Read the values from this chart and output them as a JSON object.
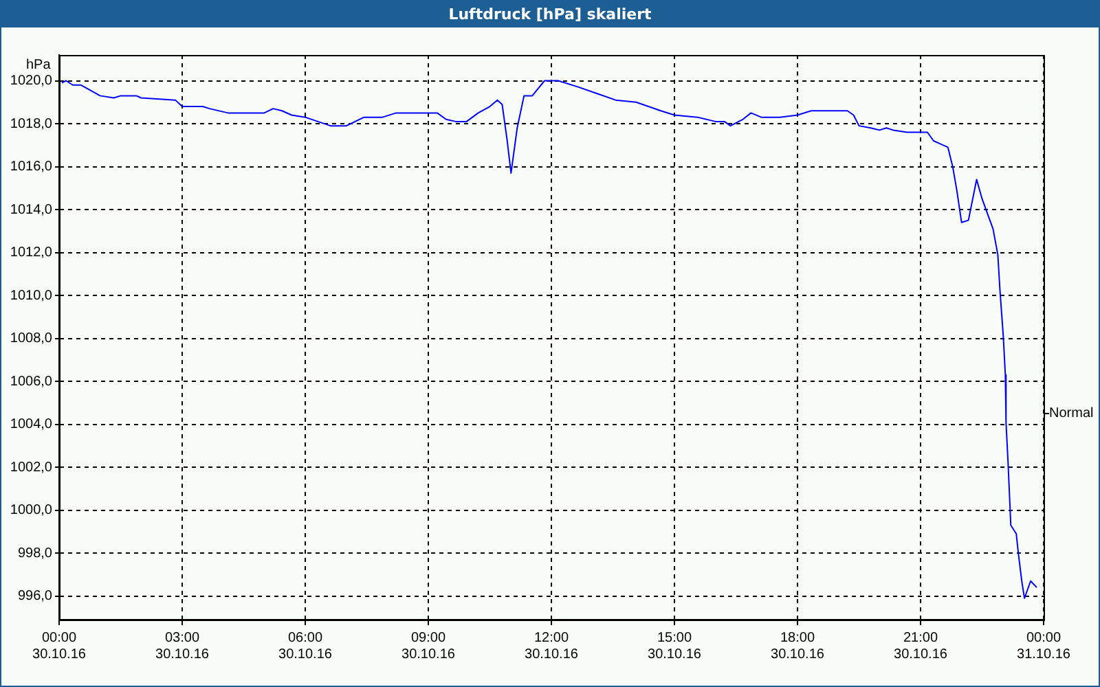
{
  "chart_data": {
    "type": "line",
    "title": "Luftdruck [hPa] skaliert",
    "ylabel": "hPa",
    "x": [
      "--10-30T00:04",
      "--10-30T00:10",
      "--10-30T00:20",
      "--10-30T00:32",
      "--10-30T01:00",
      "--10-30T01:20",
      "--10-30T01:30",
      "--10-30T01:53",
      "--10-30T02:00",
      "--10-30T02:50",
      "--10-30T03:00",
      "--10-30T03:30",
      "--10-30T03:40",
      "--10-30T04:07",
      "--10-30T05:00",
      "--10-30T05:13",
      "--10-30T05:26",
      "--10-30T05:40",
      "--10-30T06:00",
      "--10-30T06:37",
      "--10-30T07:00",
      "--10-30T07:26",
      "--10-30T07:53",
      "--10-30T08:13",
      "--10-30T09:13",
      "--10-30T09:26",
      "--10-30T09:40",
      "--10-30T09:56",
      "--10-30T10:13",
      "--10-30T10:30",
      "--10-30T10:41",
      "--10-30T10:48",
      "--10-30T10:55",
      "--10-30T11:01",
      "--10-30T11:10",
      "--10-30T11:20",
      "--10-30T11:32",
      "--10-30T11:50",
      "--10-30T12:10",
      "--10-30T12:40",
      "--10-30T13:07",
      "--10-30T13:34",
      "--10-30T14:04",
      "--10-30T14:40",
      "--10-30T15:00",
      "--10-30T15:34",
      "--10-30T16:00",
      "--10-30T16:13",
      "--10-30T16:22",
      "--10-30T16:34",
      "--10-30T16:40",
      "--10-30T16:52",
      "--10-30T17:07",
      "--10-30T17:34",
      "--10-30T18:00",
      "--10-30T18:20",
      "--10-30T18:40",
      "--10-30T19:13",
      "--10-30T19:22",
      "--10-30T19:30",
      "--10-30T19:47",
      "--10-30T20:00",
      "--10-30T20:10",
      "--10-30T20:20",
      "--10-30T20:40",
      "--10-30T21:10",
      "--10-30T21:19",
      "--10-30T21:26",
      "--10-30T21:40",
      "--10-30T21:47",
      "--10-30T21:53",
      "--10-30T22:00",
      "--10-30T22:10",
      "--10-30T22:22",
      "--10-30T22:30",
      "--10-30T22:38",
      "--10-30T22:46",
      "--10-30T22:53",
      "--10-30T22:56",
      "--10-30T23:01",
      "--10-30T23:04",
      "--10-30T23:05",
      "--10-30T23:08",
      "--10-30T23:12",
      "--10-30T23:20",
      "--10-30T23:23",
      "--10-30T23:28",
      "--10-30T23:32",
      "--10-30T23:41",
      "--10-30T23:50"
    ],
    "series": [
      {
        "color": "#0000ff",
        "values": [
          1019.9,
          1020.0,
          1019.8,
          1019.8,
          1019.3,
          1019.2,
          1019.3,
          1019.3,
          1019.2,
          1019.1,
          1018.8,
          1018.8,
          1018.7,
          1018.5,
          1018.5,
          1018.7,
          1018.6,
          1018.4,
          1018.3,
          1017.9,
          1017.9,
          1018.3,
          1018.3,
          1018.5,
          1018.5,
          1018.2,
          1018.1,
          1018.1,
          1018.5,
          1018.8,
          1019.1,
          1018.9,
          1017.3,
          1015.7,
          1017.8,
          1019.3,
          1019.3,
          1020.0,
          1020.0,
          1019.7,
          1019.4,
          1019.1,
          1019.0,
          1018.6,
          1018.4,
          1018.3,
          1018.1,
          1018.1,
          1017.9,
          1018.1,
          1018.2,
          1018.5,
          1018.3,
          1018.3,
          1018.4,
          1018.6,
          1018.6,
          1018.6,
          1018.4,
          1017.9,
          1017.8,
          1017.7,
          1017.8,
          1017.7,
          1017.6,
          1017.6,
          1017.2,
          1017.1,
          1016.9,
          1016.0,
          1014.9,
          1013.4,
          1013.5,
          1015.4,
          1014.5,
          1013.8,
          1013.1,
          1011.9,
          1010.3,
          1008.1,
          1006.3,
          1004.1,
          1002.2,
          999.3,
          998.9,
          998.0,
          996.7,
          995.9,
          996.7,
          996.4
        ]
      }
    ],
    "xlim": [
      "--10-30T00:00",
      "--10-31T00:00"
    ],
    "xticks": [
      {
        "value": "--10-30T00:00",
        "label": "00:00\n30.10.16"
      },
      {
        "value": "--10-30T03:00",
        "label": "03:00\n30.10.16"
      },
      {
        "value": "--10-30T06:00",
        "label": "06:00\n30.10.16"
      },
      {
        "value": "--10-30T09:00",
        "label": "09:00\n30.10.16"
      },
      {
        "value": "--10-30T12:00",
        "label": "12:00\n30.10.16"
      },
      {
        "value": "--10-30T15:00",
        "label": "15:00\n30.10.16"
      },
      {
        "value": "--10-30T18:00",
        "label": "18:00\n30.10.16"
      },
      {
        "value": "--10-30T21:00",
        "label": "21:00\n30.10.16"
      },
      {
        "value": "--10-31T00:00",
        "label": "00:00\n31.10.16"
      }
    ],
    "ylim": [
      994.9,
      1021.2
    ],
    "yticks": [
      {
        "value": 996,
        "label": "996,0"
      },
      {
        "value": 998,
        "label": "998,0"
      },
      {
        "value": 1000,
        "label": "1000,0"
      },
      {
        "value": 1002,
        "label": "1002,0"
      },
      {
        "value": 1004,
        "label": "1004,0"
      },
      {
        "value": 1006,
        "label": "1006,0"
      },
      {
        "value": 1008,
        "label": "1008,0"
      },
      {
        "value": 1010,
        "label": "1010,0"
      },
      {
        "value": 1012,
        "label": "1012,0"
      },
      {
        "value": 1014,
        "label": "1014,0"
      },
      {
        "value": 1016,
        "label": "1016,0"
      },
      {
        "value": 1018,
        "label": "1018,0"
      },
      {
        "value": 1020,
        "label": "1020,0"
      }
    ],
    "ref_lines": [
      {
        "axis": "y",
        "value": 1004.5,
        "label": "Normal"
      }
    ],
    "grid": true,
    "legend": false
  }
}
